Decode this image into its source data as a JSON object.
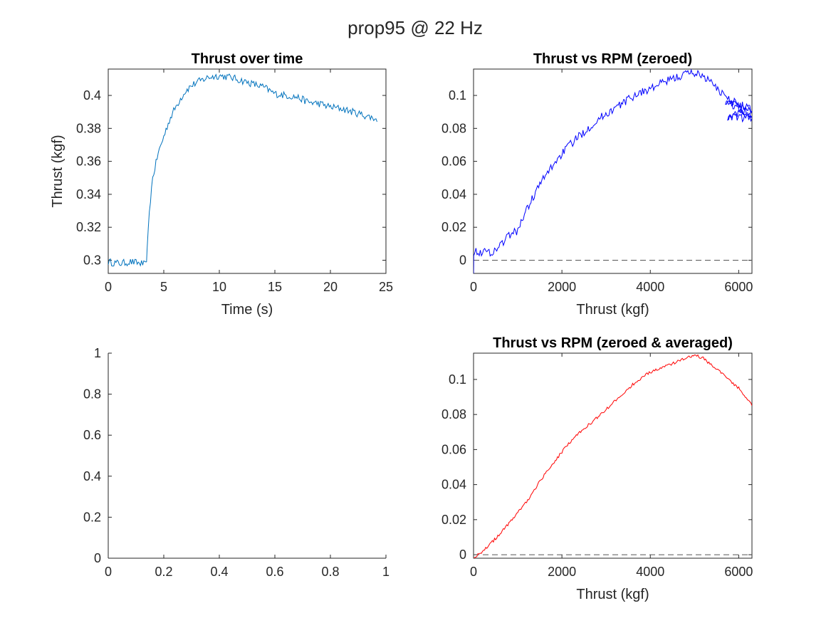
{
  "figure": {
    "title": "prop95 @ 22 Hz"
  },
  "chart_data": [
    {
      "id": "p1",
      "type": "line",
      "title": "Thrust over time",
      "xlabel": "Time (s)",
      "ylabel": "Thrust (kgf)",
      "xlim": [
        0,
        25
      ],
      "ylim": [
        0.292,
        0.416
      ],
      "xticks": [
        0,
        5,
        10,
        15,
        20,
        25
      ],
      "yticks": [
        0.3,
        0.32,
        0.34,
        0.36,
        0.38,
        0.4
      ],
      "ytick_labels": [
        "0.3",
        "0.32",
        "0.34",
        "0.36",
        "0.38",
        "0.4"
      ],
      "color": "#0072BD",
      "noise": 0.0022,
      "series": [
        {
          "x": [
            0,
            1,
            2,
            3,
            3.4,
            3.5,
            3.7,
            4.0,
            4.5,
            5.0,
            5.5,
            6.0,
            6.5,
            7,
            7.5,
            8,
            9,
            10,
            11,
            12,
            13,
            14,
            15,
            16,
            17,
            18,
            19,
            20,
            21,
            22,
            23,
            24,
            24.2
          ],
          "y": [
            0.299,
            0.298,
            0.299,
            0.298,
            0.297,
            0.305,
            0.33,
            0.35,
            0.365,
            0.375,
            0.385,
            0.392,
            0.398,
            0.403,
            0.406,
            0.408,
            0.411,
            0.412,
            0.411,
            0.409,
            0.407,
            0.405,
            0.401,
            0.4,
            0.399,
            0.396,
            0.395,
            0.393,
            0.392,
            0.39,
            0.388,
            0.386,
            0.384
          ]
        }
      ]
    },
    {
      "id": "p2",
      "type": "line",
      "title": "Thrust vs RPM (zeroed)",
      "xlabel": "Thrust (kgf)",
      "ylabel": "",
      "xlim": [
        0,
        6300
      ],
      "ylim": [
        -0.008,
        0.116
      ],
      "xticks": [
        0,
        2000,
        4000,
        6000
      ],
      "yticks": [
        0,
        0.02,
        0.04,
        0.06,
        0.08,
        0.1
      ],
      "ytick_labels": [
        "0",
        "0.02",
        "0.04",
        "0.06",
        "0.08",
        "0.1"
      ],
      "color": "#0000FF",
      "noise": 0.0025,
      "zero_line": true,
      "series": [
        {
          "x": [
            0,
            5,
            450,
            800,
            1000,
            1100,
            1300,
            1500,
            1800,
            2100,
            2500,
            2900,
            3300,
            3700,
            4000,
            4300,
            4600,
            4900,
            5100,
            5300,
            5500,
            5700,
            5900,
            6100,
            6300,
            5700,
            6300,
            5750,
            6300
          ],
          "y": [
            -0.007,
            0.005,
            0.005,
            0.015,
            0.018,
            0.025,
            0.036,
            0.046,
            0.058,
            0.068,
            0.078,
            0.087,
            0.094,
            0.101,
            0.104,
            0.108,
            0.111,
            0.114,
            0.113,
            0.11,
            0.104,
            0.1,
            0.096,
            0.092,
            0.087,
            0.097,
            0.092,
            0.087,
            0.086
          ]
        }
      ]
    },
    {
      "id": "p3",
      "type": "line",
      "title": "",
      "xlabel": "",
      "ylabel": "",
      "xlim": [
        0,
        1
      ],
      "ylim": [
        0,
        1
      ],
      "xticks": [
        0,
        0.2,
        0.4,
        0.6,
        0.8,
        1
      ],
      "yticks": [
        0,
        0.2,
        0.4,
        0.6,
        0.8,
        1
      ],
      "ytick_labels": [
        "0",
        "0.2",
        "0.4",
        "0.6",
        "0.8",
        "1"
      ],
      "boxed": false,
      "series": []
    },
    {
      "id": "p4",
      "type": "line",
      "title": "Thrust vs RPM (zeroed & averaged)",
      "xlabel": "Thrust (kgf)",
      "ylabel": "",
      "xlim": [
        0,
        6300
      ],
      "ylim": [
        -0.002,
        0.115
      ],
      "xticks": [
        0,
        2000,
        4000,
        6000
      ],
      "yticks": [
        0,
        0.02,
        0.04,
        0.06,
        0.08,
        0.1
      ],
      "ytick_labels": [
        "0",
        "0.02",
        "0.04",
        "0.06",
        "0.08",
        "0.1"
      ],
      "color": "#FF0000",
      "noise": 0.0008,
      "zero_line": true,
      "series": [
        {
          "x": [
            0,
            300,
            600,
            900,
            1200,
            1500,
            1800,
            2100,
            2400,
            2700,
            3000,
            3300,
            3600,
            3900,
            4200,
            4500,
            4800,
            5000,
            5200,
            5400,
            5600,
            5800,
            6000,
            6200,
            6300
          ],
          "y": [
            -0.002,
            0.004,
            0.012,
            0.021,
            0.03,
            0.042,
            0.052,
            0.062,
            0.07,
            0.076,
            0.083,
            0.09,
            0.097,
            0.103,
            0.106,
            0.109,
            0.112,
            0.114,
            0.112,
            0.108,
            0.104,
            0.099,
            0.095,
            0.089,
            0.085
          ]
        }
      ]
    }
  ]
}
